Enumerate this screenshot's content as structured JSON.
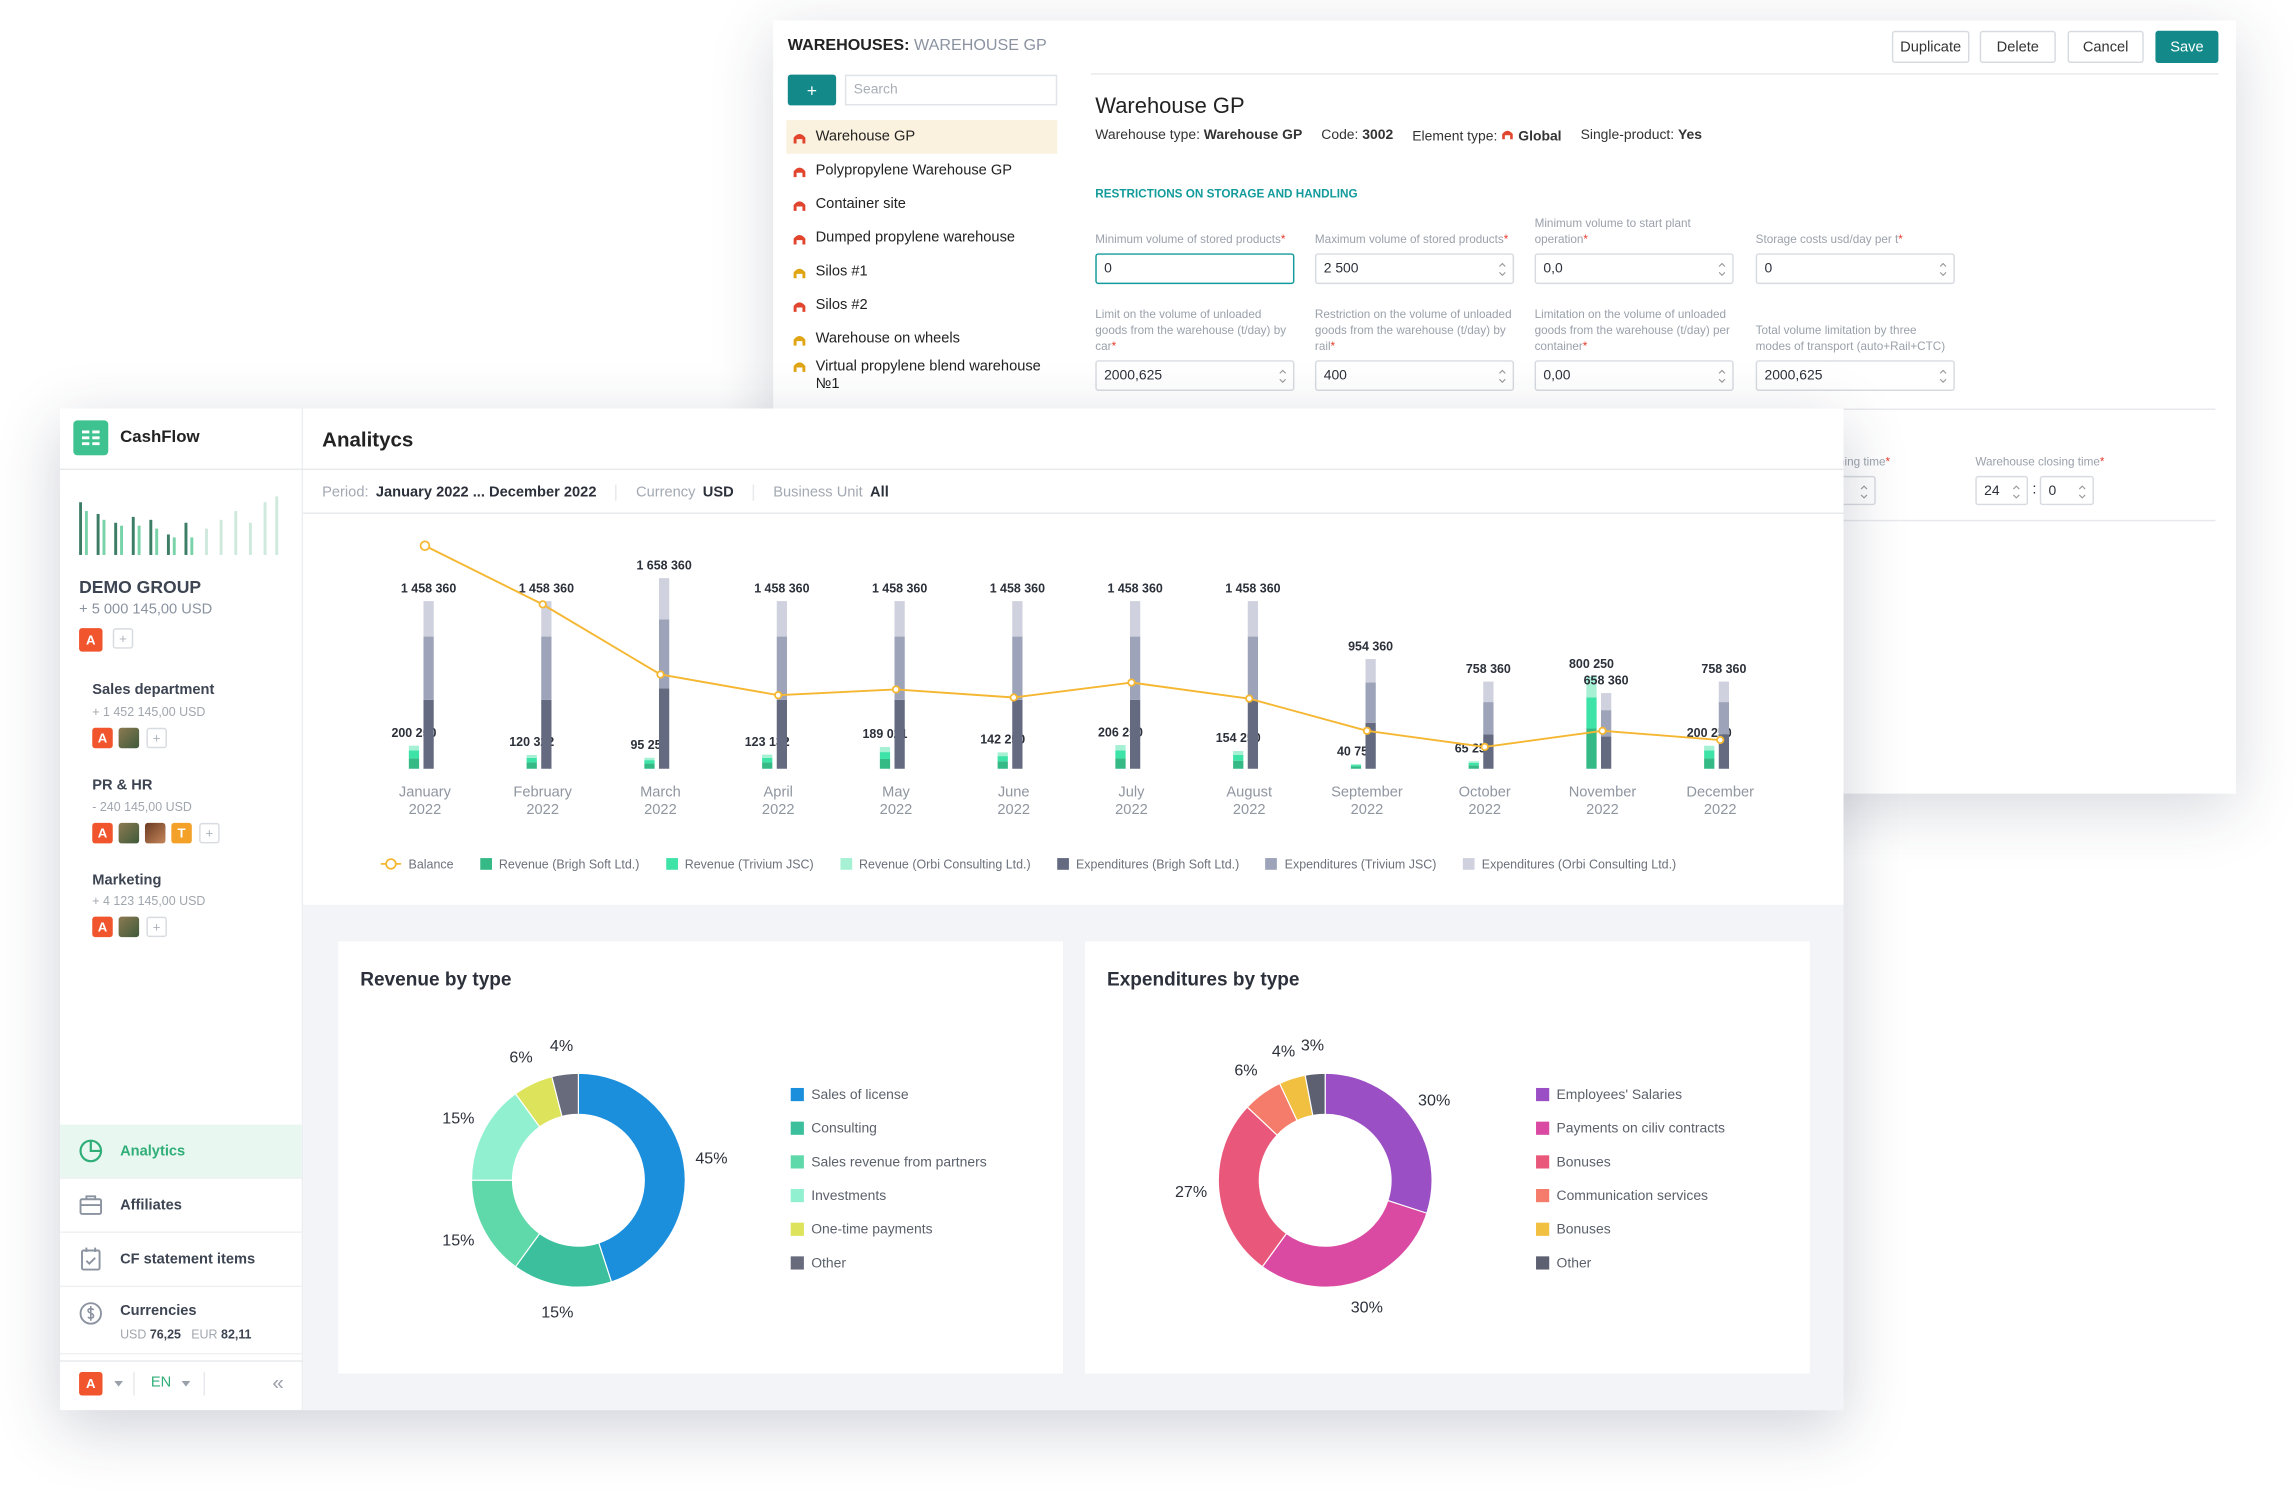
{
  "warehouse": {
    "title_prefix": "WAREHOUSES:",
    "title_name": "WAREHOUSE GP",
    "buttons": [
      "Duplicate",
      "Delete",
      "Cancel",
      "Save"
    ],
    "add_button": "+",
    "search_placeholder": "Search",
    "list": [
      "Warehouse GP",
      "Polypropylene Warehouse GP",
      "Container site",
      "Dumped propylene warehouse",
      "Silos #1",
      "Silos #2",
      "Warehouse on wheels",
      "Virtual propylene blend warehouse №1"
    ],
    "heading": "Warehouse GP",
    "info": [
      {
        "label": "Warehouse type:",
        "value": "Warehouse GP"
      },
      {
        "label": "Code:",
        "value": "3002"
      },
      {
        "label": "Element type:",
        "value": "Global"
      },
      {
        "label": "Single-product:",
        "value": "Yes"
      }
    ],
    "section": "RESTRICTIONS ON STORAGE AND HANDLING",
    "required_mark": "*",
    "fields": [
      {
        "label": "Minimum volume of stored products",
        "required": true,
        "value": "0"
      },
      {
        "label": "Maximum volume of stored products",
        "required": true,
        "value": "2 500"
      },
      {
        "label": "Minimum volume to start plant operation",
        "required": true,
        "value": "0,0"
      },
      {
        "label": "Storage costs usd/day per t",
        "required": true,
        "value": "0"
      },
      {
        "label": "Limit on the volume of unloaded goods from the warehouse (t/day) by car",
        "required": true,
        "value": "2000,625"
      },
      {
        "label": "Restriction on the volume of unloaded goods from the warehouse (t/day) by rail",
        "required": true,
        "value": "400"
      },
      {
        "label": "Limitation on the volume of unloaded goods from the warehouse (t/day) per container",
        "required": true,
        "value": "0,00"
      },
      {
        "label": "Total volume limitation by three modes of transport (auto+Rail+CTC)",
        "required": false,
        "value": "2000,625"
      }
    ],
    "opening_time": "Warehouse opening time",
    "closing_time": {
      "label": "Warehouse closing time",
      "hours": "24",
      "minutes": "0"
    },
    "time_separator": ":"
  },
  "app": {
    "logo": "CashFlow",
    "title": "Analitycs",
    "filters": [
      {
        "label": "Period:",
        "value": "January 2022 ... December 2022"
      },
      {
        "label": "Currency",
        "value": "USD"
      },
      {
        "label": "Business Unit",
        "value": "All"
      }
    ],
    "add_mark": "+",
    "group": {
      "name": "DEMO GROUP",
      "amount": "+ 5 000 145,00 USD",
      "avatar": "A"
    },
    "departments": [
      {
        "name": "Sales department",
        "amount": "+ 1 452 145,00 USD",
        "avatars": [
          "A"
        ]
      },
      {
        "name": "PR & HR",
        "amount": "- 240 145,00 USD",
        "avatars": [
          "A",
          "T"
        ]
      },
      {
        "name": "Marketing",
        "amount": "+ 4 123 145,00 USD",
        "avatars": [
          "A"
        ]
      }
    ],
    "nav": [
      "Analytics",
      "Affiliates",
      "CF statement items",
      "Currencies"
    ],
    "rates": [
      {
        "code": "USD",
        "value": "76,25"
      },
      {
        "code": "EUR",
        "value": "82,11"
      }
    ],
    "user": "A",
    "language": "EN",
    "collapse": "«"
  },
  "chart_data": [
    {
      "type": "bar",
      "categories": [
        "January 2022",
        "February 2022",
        "March 2022",
        "April 2022",
        "May 2022",
        "June 2022",
        "July 2022",
        "August 2022",
        "September 2022",
        "October 2022",
        "November 2022",
        "December 2022"
      ],
      "ylim": [
        0,
        2000000
      ],
      "series": [
        {
          "name": "Balance",
          "type": "line",
          "color": "#f5b731",
          "values": [
            1940000,
            1430000,
            820000,
            640000,
            690000,
            620000,
            750000,
            610000,
            330000,
            190000,
            330000,
            250000
          ]
        },
        {
          "name": "Revenue (Brigh Soft Ltd.)",
          "stack": "revenue",
          "color": "#35b985",
          "values": [
            90000,
            55000,
            45000,
            55000,
            85000,
            65000,
            90000,
            70000,
            20000,
            30000,
            350000,
            90000
          ]
        },
        {
          "name": "Revenue (Trivium JSC)",
          "stack": "revenue",
          "color": "#3ee3a8",
          "values": [
            70000,
            40000,
            30000,
            40000,
            60000,
            45000,
            70000,
            50000,
            12000,
            20000,
            270000,
            70000
          ]
        },
        {
          "name": "Revenue (Orbi Consulting Ltd.)",
          "stack": "revenue",
          "color": "#a6f0d3",
          "values": [
            40250,
            25322,
            20250,
            28132,
            44021,
            32250,
            46250,
            34250,
            8750,
            15250,
            180250,
            40250
          ]
        },
        {
          "name": "Expenditures (Brigh Soft Ltd.)",
          "stack": "expenditure",
          "color": "#646a80",
          "values": [
            600000,
            600000,
            700000,
            600000,
            600000,
            600000,
            600000,
            600000,
            400000,
            300000,
            280000,
            300000
          ]
        },
        {
          "name": "Expenditures (Trivium JSC)",
          "stack": "expenditure",
          "color": "#9da3b8",
          "values": [
            550000,
            550000,
            600000,
            550000,
            550000,
            550000,
            550000,
            550000,
            350000,
            280000,
            230000,
            280000
          ]
        },
        {
          "name": "Expenditures (Orbi Consulting Ltd.)",
          "stack": "expenditure",
          "color": "#cfd2de",
          "values": [
            308360,
            308360,
            358360,
            308360,
            308360,
            308360,
            308360,
            308360,
            204360,
            178360,
            148360,
            178360
          ]
        }
      ],
      "revenue_labels": [
        "200 250",
        "120 322",
        "95 250",
        "123 132",
        "189 021",
        "142 250",
        "206 250",
        "154 250",
        "40 750",
        "65 250",
        "800 250",
        "200 250"
      ],
      "expenditure_labels": [
        "1 458 360",
        "1 458 360",
        "1 658 360",
        "1 458 360",
        "1 458 360",
        "1 458 360",
        "1 458 360",
        "1 458 360",
        "954 360",
        "758 360",
        "658 360",
        "758 360"
      ]
    },
    {
      "type": "pie",
      "title": "Revenue by type",
      "categories": [
        "Sales of license",
        "Consulting",
        "Sales revenue from partners",
        "Investments",
        "One-time payments",
        "Other"
      ],
      "values": [
        45,
        15,
        15,
        15,
        6,
        4
      ],
      "value_labels": [
        "45%",
        "15%",
        "15%",
        "15%",
        "6%",
        "4%"
      ],
      "colors": [
        "#1c8fdc",
        "#3bbf9c",
        "#5fd9a9",
        "#90f0cf",
        "#dde35a",
        "#676b7c"
      ]
    },
    {
      "type": "pie",
      "title": "Expenditures by type",
      "categories": [
        "Employees' Salaries",
        "Payments on ciliv contracts",
        "Bonuses",
        "Communication services",
        "Bonuses",
        "Other"
      ],
      "values": [
        30,
        30,
        27,
        6,
        4,
        3
      ],
      "value_labels": [
        "30%",
        "30%",
        "27%",
        "6%",
        "4%",
        "3%"
      ],
      "colors": [
        "#9b4fc4",
        "#da4aa2",
        "#e9587a",
        "#f57c6a",
        "#f2c041",
        "#5c6070"
      ]
    }
  ]
}
